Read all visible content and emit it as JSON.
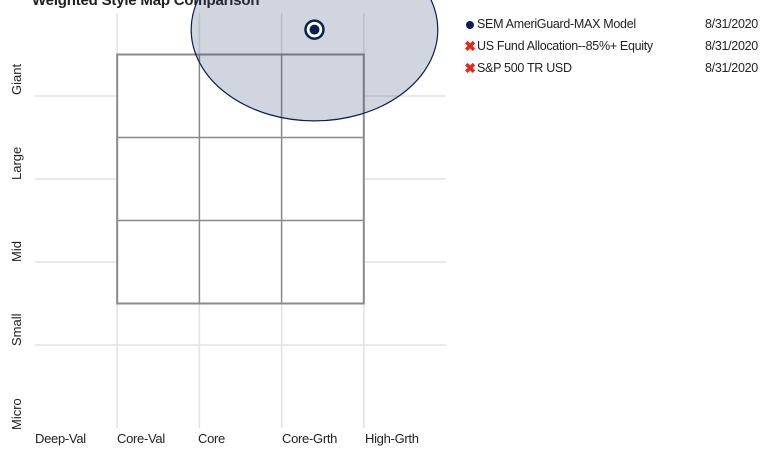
{
  "chart_data": {
    "type": "scatter",
    "title": "Weighted Style Map Comparison",
    "xlabel": "",
    "ylabel": "",
    "x_labels": [
      "Deep-Val",
      "Core-Val",
      "Core",
      "Core-Grth",
      "High-Grth"
    ],
    "y_labels": [
      "Giant",
      "Large",
      "Mid",
      "Small",
      "Micro"
    ],
    "xlim": [
      -250,
      250
    ],
    "ylim": [
      -250,
      250
    ],
    "grid": true,
    "legend_position": "right",
    "style_box": {
      "x": [
        -150,
        150
      ],
      "y": [
        -100,
        200
      ]
    },
    "series": [
      {
        "name": "SEM AmeriGuard-MAX Model",
        "date": "8/31/2020",
        "marker": "dot",
        "x": 90,
        "y": 230,
        "ellipse": {
          "rx": 150,
          "ry": 110
        }
      },
      {
        "name": "US Fund Allocation--85%+ Equity",
        "date": "8/31/2020",
        "marker": "x",
        "x": null,
        "y": null
      },
      {
        "name": "S&P 500 TR USD",
        "date": "8/31/2020",
        "marker": "x",
        "x": null,
        "y": null
      }
    ],
    "colors": {
      "model": "#0d1f4e",
      "ellipse_fill": "#2b3f72",
      "ellipse_stroke": "#0d1f4e",
      "x_marker": "#e8251b",
      "grid": "#e2e2e2",
      "box": "#8a8a8a"
    }
  }
}
